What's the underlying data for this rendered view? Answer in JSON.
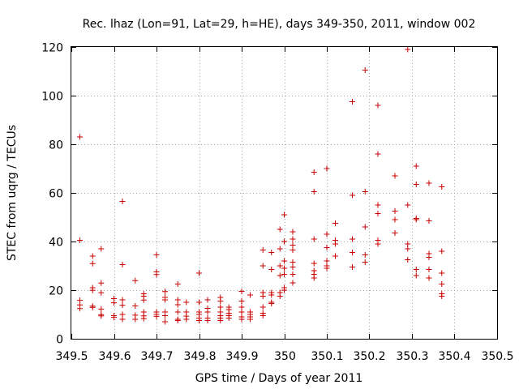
{
  "chart_data": {
    "type": "scatter",
    "title": "Rec. lhaz (Lon=91, Lat=29, h=HE), days 349-350, 2011, window 002",
    "xlabel": "GPS time / Days of year 2011",
    "ylabel": "STEC from uqrg / TECUs",
    "xlim": [
      349.5,
      350.5
    ],
    "ylim": [
      0,
      120
    ],
    "xticks": [
      "349.5",
      "349.6",
      "349.7",
      "349.8",
      "349.9",
      "350",
      "350.1",
      "350.2",
      "350.3",
      "350.4",
      "350.5"
    ],
    "yticks": [
      "0",
      "20",
      "40",
      "60",
      "80",
      "100",
      "120"
    ],
    "grid": true,
    "marker": "plus",
    "color": "#cc0000",
    "points": [
      [
        349.52,
        83.0
      ],
      [
        349.52,
        40.5
      ],
      [
        349.52,
        15.8
      ],
      [
        349.52,
        13.9
      ],
      [
        349.52,
        12.4
      ],
      [
        349.55,
        34.0
      ],
      [
        349.55,
        30.9
      ],
      [
        349.55,
        21.0
      ],
      [
        349.55,
        19.9
      ],
      [
        349.55,
        13.4
      ],
      [
        349.55,
        12.9
      ],
      [
        349.57,
        37.0
      ],
      [
        349.57,
        22.9
      ],
      [
        349.57,
        18.9
      ],
      [
        349.57,
        12.2
      ],
      [
        349.57,
        9.9
      ],
      [
        349.57,
        9.4
      ],
      [
        349.6,
        16.5
      ],
      [
        349.6,
        14.8
      ],
      [
        349.6,
        9.5
      ],
      [
        349.6,
        8.8
      ],
      [
        349.62,
        56.5
      ],
      [
        349.62,
        30.5
      ],
      [
        349.62,
        16.0
      ],
      [
        349.62,
        13.8
      ],
      [
        349.62,
        10.0
      ],
      [
        349.62,
        8.0
      ],
      [
        349.65,
        23.9
      ],
      [
        349.65,
        13.5
      ],
      [
        349.65,
        9.7
      ],
      [
        349.65,
        8.0
      ],
      [
        349.67,
        18.5
      ],
      [
        349.67,
        17.5
      ],
      [
        349.67,
        15.9
      ],
      [
        349.67,
        11.0
      ],
      [
        349.67,
        9.4
      ],
      [
        349.67,
        8.3
      ],
      [
        349.7,
        34.5
      ],
      [
        349.7,
        27.5
      ],
      [
        349.7,
        26.4
      ],
      [
        349.7,
        11.0
      ],
      [
        349.7,
        10.0
      ],
      [
        349.7,
        9.2
      ],
      [
        349.72,
        19.4
      ],
      [
        349.72,
        17.0
      ],
      [
        349.72,
        16.0
      ],
      [
        349.72,
        11.0
      ],
      [
        349.72,
        9.5
      ],
      [
        349.72,
        7.0
      ],
      [
        349.75,
        22.5
      ],
      [
        349.75,
        16.0
      ],
      [
        349.75,
        14.0
      ],
      [
        349.75,
        11.0
      ],
      [
        349.75,
        8.0
      ],
      [
        349.75,
        7.5
      ],
      [
        349.77,
        15.0
      ],
      [
        349.77,
        11.0
      ],
      [
        349.77,
        9.3
      ],
      [
        349.77,
        8.0
      ],
      [
        349.8,
        27.0
      ],
      [
        349.8,
        15.0
      ],
      [
        349.8,
        11.0
      ],
      [
        349.8,
        10.0
      ],
      [
        349.8,
        8.5
      ],
      [
        349.8,
        7.5
      ],
      [
        349.82,
        16.0
      ],
      [
        349.82,
        12.5
      ],
      [
        349.82,
        11.0
      ],
      [
        349.82,
        8.5
      ],
      [
        349.82,
        7.5
      ],
      [
        349.85,
        17.0
      ],
      [
        349.85,
        15.5
      ],
      [
        349.85,
        13.0
      ],
      [
        349.85,
        11.0
      ],
      [
        349.85,
        9.5
      ],
      [
        349.85,
        8.5
      ],
      [
        349.85,
        7.5
      ],
      [
        349.87,
        13.0
      ],
      [
        349.87,
        12.0
      ],
      [
        349.87,
        10.5
      ],
      [
        349.87,
        9.5
      ],
      [
        349.87,
        8.5
      ],
      [
        349.9,
        19.5
      ],
      [
        349.9,
        15.5
      ],
      [
        349.9,
        13.0
      ],
      [
        349.9,
        11.0
      ],
      [
        349.9,
        9.0
      ],
      [
        349.9,
        8.0
      ],
      [
        349.92,
        18.0
      ],
      [
        349.92,
        11.0
      ],
      [
        349.92,
        10.0
      ],
      [
        349.92,
        9.0
      ],
      [
        349.92,
        8.0
      ],
      [
        349.95,
        36.5
      ],
      [
        349.95,
        30.0
      ],
      [
        349.95,
        19.0
      ],
      [
        349.95,
        17.5
      ],
      [
        349.95,
        13.0
      ],
      [
        349.95,
        10.5
      ],
      [
        349.95,
        9.5
      ],
      [
        349.97,
        35.5
      ],
      [
        349.97,
        28.5
      ],
      [
        349.97,
        19.0
      ],
      [
        349.97,
        18.0
      ],
      [
        349.97,
        15.0
      ],
      [
        349.97,
        14.5
      ],
      [
        349.99,
        45.0
      ],
      [
        349.99,
        37.0
      ],
      [
        349.99,
        30.0
      ],
      [
        349.99,
        26.0
      ],
      [
        349.99,
        19.0
      ],
      [
        349.99,
        17.5
      ],
      [
        350.0,
        51.0
      ],
      [
        350.0,
        40.0
      ],
      [
        350.0,
        32.0
      ],
      [
        350.0,
        29.0
      ],
      [
        350.0,
        26.5
      ],
      [
        350.0,
        21.0
      ],
      [
        350.0,
        20.0
      ],
      [
        350.02,
        44.0
      ],
      [
        350.02,
        41.0
      ],
      [
        350.02,
        38.5
      ],
      [
        350.02,
        36.5
      ],
      [
        350.02,
        31.5
      ],
      [
        350.02,
        29.5
      ],
      [
        350.02,
        26.5
      ],
      [
        350.02,
        23.0
      ],
      [
        350.07,
        68.5
      ],
      [
        350.07,
        60.5
      ],
      [
        350.07,
        41.0
      ],
      [
        350.07,
        31.0
      ],
      [
        350.07,
        28.0
      ],
      [
        350.07,
        26.5
      ],
      [
        350.07,
        25.0
      ],
      [
        350.1,
        70.0
      ],
      [
        350.1,
        43.0
      ],
      [
        350.1,
        37.5
      ],
      [
        350.1,
        32.0
      ],
      [
        350.1,
        30.0
      ],
      [
        350.1,
        29.0
      ],
      [
        350.12,
        47.5
      ],
      [
        350.12,
        40.5
      ],
      [
        350.12,
        39.0
      ],
      [
        350.12,
        34.0
      ],
      [
        350.16,
        97.5
      ],
      [
        350.16,
        59.0
      ],
      [
        350.16,
        41.0
      ],
      [
        350.16,
        35.5
      ],
      [
        350.16,
        29.5
      ],
      [
        350.19,
        110.5
      ],
      [
        350.19,
        60.5
      ],
      [
        350.19,
        46.0
      ],
      [
        350.19,
        34.5
      ],
      [
        350.19,
        31.5
      ],
      [
        350.22,
        96.0
      ],
      [
        350.22,
        76.0
      ],
      [
        350.22,
        55.0
      ],
      [
        350.22,
        51.5
      ],
      [
        350.22,
        40.5
      ],
      [
        350.22,
        39.0
      ],
      [
        350.26,
        67.0
      ],
      [
        350.26,
        52.5
      ],
      [
        350.26,
        49.0
      ],
      [
        350.26,
        43.5
      ],
      [
        350.29,
        119.0
      ],
      [
        350.29,
        55.0
      ],
      [
        350.29,
        39.0
      ],
      [
        350.29,
        37.0
      ],
      [
        350.29,
        32.5
      ],
      [
        350.31,
        71.0
      ],
      [
        350.31,
        63.5
      ],
      [
        350.31,
        49.5
      ],
      [
        350.31,
        49.0
      ],
      [
        350.31,
        28.5
      ],
      [
        350.31,
        26.0
      ],
      [
        350.34,
        64.0
      ],
      [
        350.34,
        48.5
      ],
      [
        350.34,
        35.0
      ],
      [
        350.34,
        33.5
      ],
      [
        350.34,
        28.5
      ],
      [
        350.34,
        25.0
      ],
      [
        350.37,
        62.5
      ],
      [
        350.37,
        36.0
      ],
      [
        350.37,
        27.0
      ],
      [
        350.37,
        22.5
      ],
      [
        350.37,
        18.5
      ],
      [
        350.37,
        17.5
      ]
    ]
  }
}
